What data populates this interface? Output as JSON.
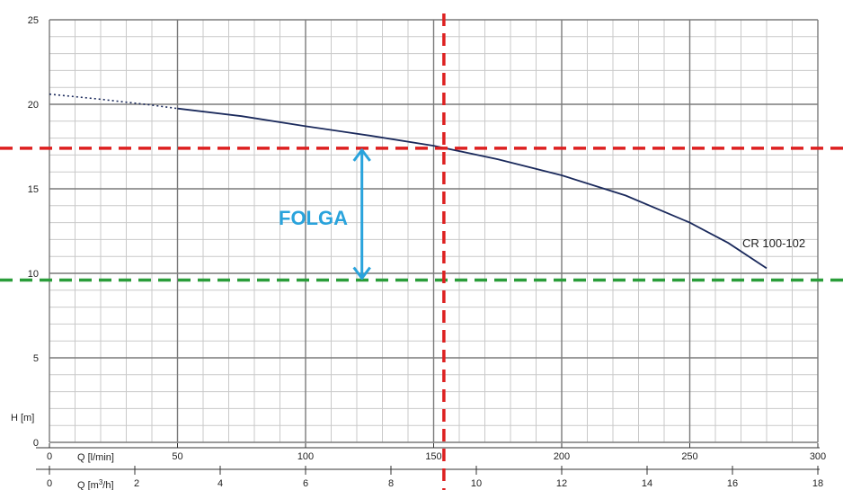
{
  "chart_data": {
    "type": "line",
    "title": "",
    "y": {
      "label": "H [m]",
      "range": [
        0,
        25
      ],
      "major_ticks": [
        0,
        5,
        10,
        15,
        20,
        25
      ],
      "minor_step": 1
    },
    "x_primary": {
      "label": "Q [l/min]",
      "range": [
        0,
        300
      ],
      "major_ticks": [
        0,
        50,
        100,
        150,
        200,
        250,
        300
      ],
      "minor_step": 10
    },
    "x_secondary": {
      "label_prefix": "Q [m",
      "label_sup": "3",
      "label_suffix": "/h]",
      "range": [
        0,
        18
      ],
      "ticks": [
        0,
        2,
        4,
        6,
        8,
        10,
        12,
        14,
        16,
        18
      ]
    },
    "grid": true,
    "series": [
      {
        "name": "CR 100-102",
        "color": "#1b2a5c",
        "dotted_until_x": 50,
        "points": [
          [
            0,
            20.6
          ],
          [
            20,
            20.3
          ],
          [
            40,
            19.95
          ],
          [
            50,
            19.75
          ],
          [
            75,
            19.3
          ],
          [
            100,
            18.7
          ],
          [
            125,
            18.15
          ],
          [
            150,
            17.55
          ],
          [
            175,
            16.75
          ],
          [
            200,
            15.8
          ],
          [
            225,
            14.6
          ],
          [
            250,
            13.0
          ],
          [
            265,
            11.8
          ],
          [
            280,
            10.3
          ]
        ]
      }
    ],
    "annotations": {
      "operating_head": {
        "value": 17.4,
        "color": "#dd2020"
      },
      "required_head": {
        "value": 9.6,
        "color": "#2a9d3a"
      },
      "operating_flow": {
        "value": 154,
        "color": "#dd2020"
      },
      "slack": {
        "label": "FOLGA",
        "color": "#29a3dc",
        "at_x": 122,
        "from": 9.6,
        "to": 17.4
      }
    }
  }
}
